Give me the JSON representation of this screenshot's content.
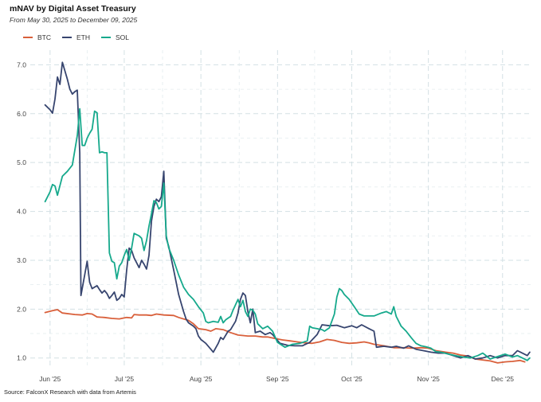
{
  "chart_data": {
    "type": "line",
    "title": "mNAV by Digital Asset Treasury",
    "subtitle": "From May 30, 2025 to December 09, 2025",
    "source": "Source: FalconX Research with data from Artemis",
    "xlabel": "",
    "ylabel": "",
    "ylim": [
      0.8,
      7.3
    ],
    "xlim_days": [
      -6,
      197
    ],
    "y_ticks": [
      1.0,
      2.0,
      3.0,
      4.0,
      5.0,
      6.0,
      7.0
    ],
    "y_tick_labels": [
      "1.0",
      "2.0",
      "3.0",
      "4.0",
      "5.0",
      "6.0",
      "7.0"
    ],
    "x_ticks": [
      {
        "label": "Jun '25",
        "day": 2
      },
      {
        "label": "Jul '25",
        "day": 32
      },
      {
        "label": "Aug '25",
        "day": 63
      },
      {
        "label": "Sep '25",
        "day": 94
      },
      {
        "label": "Oct '25",
        "day": 124
      },
      {
        "label": "Nov '25",
        "day": 155
      },
      {
        "label": "Dec '25",
        "day": 185
      }
    ],
    "x_unit": "days since May 30, 2025",
    "series": [
      {
        "name": "BTC",
        "color": "#d9603b",
        "points": [
          [
            0,
            1.93
          ],
          [
            3,
            1.97
          ],
          [
            5,
            1.99
          ],
          [
            7,
            1.92
          ],
          [
            12,
            1.89
          ],
          [
            15,
            1.88
          ],
          [
            17,
            1.91
          ],
          [
            19,
            1.9
          ],
          [
            21,
            1.84
          ],
          [
            24,
            1.83
          ],
          [
            27,
            1.81
          ],
          [
            30,
            1.8
          ],
          [
            33,
            1.83
          ],
          [
            35,
            1.82
          ],
          [
            36,
            1.89
          ],
          [
            38,
            1.88
          ],
          [
            41,
            1.88
          ],
          [
            43,
            1.87
          ],
          [
            45,
            1.9
          ],
          [
            48,
            1.88
          ],
          [
            52,
            1.87
          ],
          [
            54,
            1.83
          ],
          [
            58,
            1.77
          ],
          [
            60,
            1.7
          ],
          [
            62,
            1.6
          ],
          [
            65,
            1.58
          ],
          [
            67,
            1.55
          ],
          [
            69,
            1.6
          ],
          [
            72,
            1.58
          ],
          [
            75,
            1.52
          ],
          [
            78,
            1.47
          ],
          [
            82,
            1.45
          ],
          [
            85,
            1.45
          ],
          [
            88,
            1.43
          ],
          [
            90,
            1.43
          ],
          [
            93,
            1.4
          ],
          [
            96,
            1.37
          ],
          [
            99,
            1.35
          ],
          [
            102,
            1.33
          ],
          [
            105,
            1.31
          ],
          [
            108,
            1.3
          ],
          [
            111,
            1.33
          ],
          [
            114,
            1.38
          ],
          [
            117,
            1.36
          ],
          [
            120,
            1.32
          ],
          [
            123,
            1.3
          ],
          [
            126,
            1.31
          ],
          [
            129,
            1.33
          ],
          [
            131,
            1.31
          ],
          [
            133,
            1.28
          ],
          [
            137,
            1.25
          ],
          [
            141,
            1.21
          ],
          [
            145,
            1.21
          ],
          [
            148,
            1.2
          ],
          [
            152,
            1.21
          ],
          [
            155,
            1.2
          ],
          [
            158,
            1.15
          ],
          [
            162,
            1.12
          ],
          [
            165,
            1.1
          ],
          [
            168,
            1.06
          ],
          [
            171,
            1.04
          ],
          [
            174,
            0.98
          ],
          [
            177,
            0.96
          ],
          [
            180,
            0.94
          ],
          [
            183,
            0.9
          ],
          [
            186,
            0.92
          ],
          [
            189,
            0.93
          ],
          [
            192,
            0.95
          ],
          [
            194,
            0.92
          ]
        ]
      },
      {
        "name": "ETH",
        "color": "#37456f",
        "points": [
          [
            0,
            6.18
          ],
          [
            2,
            6.08
          ],
          [
            3,
            6.01
          ],
          [
            4,
            6.3
          ],
          [
            5,
            6.75
          ],
          [
            6,
            6.6
          ],
          [
            7,
            7.05
          ],
          [
            9,
            6.7
          ],
          [
            10,
            6.5
          ],
          [
            11,
            6.4
          ],
          [
            12,
            6.45
          ],
          [
            13,
            6.48
          ],
          [
            14,
            5.2
          ],
          [
            14.5,
            2.28
          ],
          [
            16,
            2.7
          ],
          [
            17,
            2.98
          ],
          [
            18,
            2.55
          ],
          [
            19,
            2.42
          ],
          [
            20,
            2.45
          ],
          [
            21,
            2.48
          ],
          [
            22,
            2.4
          ],
          [
            23,
            2.33
          ],
          [
            24,
            2.38
          ],
          [
            25,
            2.32
          ],
          [
            26,
            2.22
          ],
          [
            27,
            2.28
          ],
          [
            28,
            2.35
          ],
          [
            29,
            2.18
          ],
          [
            30,
            2.22
          ],
          [
            31,
            2.3
          ],
          [
            32,
            2.25
          ],
          [
            33,
            2.8
          ],
          [
            34,
            3.25
          ],
          [
            35,
            3.2
          ],
          [
            36,
            3.05
          ],
          [
            38,
            2.85
          ],
          [
            39,
            3.0
          ],
          [
            40,
            2.92
          ],
          [
            41,
            2.82
          ],
          [
            42,
            3.1
          ],
          [
            43,
            3.8
          ],
          [
            44,
            4.1
          ],
          [
            45,
            4.25
          ],
          [
            46,
            4.2
          ],
          [
            47,
            4.3
          ],
          [
            48,
            4.82
          ],
          [
            49,
            3.45
          ],
          [
            50,
            3.28
          ],
          [
            52,
            2.8
          ],
          [
            54,
            2.3
          ],
          [
            56,
            1.95
          ],
          [
            57,
            1.8
          ],
          [
            58,
            1.72
          ],
          [
            60,
            1.65
          ],
          [
            61,
            1.6
          ],
          [
            62,
            1.45
          ],
          [
            63,
            1.38
          ],
          [
            65,
            1.3
          ],
          [
            67,
            1.18
          ],
          [
            68,
            1.12
          ],
          [
            70,
            1.3
          ],
          [
            71,
            1.42
          ],
          [
            72,
            1.38
          ],
          [
            74,
            1.55
          ],
          [
            75,
            1.58
          ],
          [
            77,
            1.75
          ],
          [
            78,
            1.92
          ],
          [
            79,
            2.2
          ],
          [
            80,
            2.33
          ],
          [
            81,
            2.28
          ],
          [
            82,
            1.95
          ],
          [
            83,
            1.72
          ],
          [
            84,
            2.0
          ],
          [
            85,
            1.52
          ],
          [
            87,
            1.55
          ],
          [
            89,
            1.48
          ],
          [
            91,
            1.52
          ],
          [
            92,
            1.48
          ],
          [
            95,
            1.3
          ],
          [
            98,
            1.26
          ],
          [
            101,
            1.25
          ],
          [
            104,
            1.25
          ],
          [
            107,
            1.32
          ],
          [
            110,
            1.48
          ],
          [
            112,
            1.68
          ],
          [
            115,
            1.66
          ],
          [
            118,
            1.67
          ],
          [
            121,
            1.62
          ],
          [
            124,
            1.66
          ],
          [
            126,
            1.62
          ],
          [
            128,
            1.68
          ],
          [
            131,
            1.6
          ],
          [
            133,
            1.55
          ],
          [
            134,
            1.22
          ],
          [
            137,
            1.24
          ],
          [
            140,
            1.22
          ],
          [
            142,
            1.24
          ],
          [
            145,
            1.2
          ],
          [
            147,
            1.25
          ],
          [
            150,
            1.18
          ],
          [
            153,
            1.15
          ],
          [
            156,
            1.12
          ],
          [
            159,
            1.1
          ],
          [
            162,
            1.1
          ],
          [
            165,
            1.05
          ],
          [
            168,
            1.0
          ],
          [
            171,
            1.05
          ],
          [
            174,
            0.98
          ],
          [
            177,
            1.0
          ],
          [
            180,
            1.05
          ],
          [
            183,
            1.0
          ],
          [
            186,
            1.05
          ],
          [
            189,
            1.05
          ],
          [
            191,
            1.15
          ],
          [
            193,
            1.1
          ],
          [
            195,
            1.05
          ],
          [
            196,
            1.12
          ]
        ]
      },
      {
        "name": "SOL",
        "color": "#16a98c",
        "points": [
          [
            0,
            4.2
          ],
          [
            2,
            4.4
          ],
          [
            3,
            4.55
          ],
          [
            4,
            4.52
          ],
          [
            5,
            4.33
          ],
          [
            7,
            4.72
          ],
          [
            9,
            4.82
          ],
          [
            11,
            4.95
          ],
          [
            13,
            5.55
          ],
          [
            14,
            6.1
          ],
          [
            15,
            5.35
          ],
          [
            16,
            5.35
          ],
          [
            17,
            5.5
          ],
          [
            18,
            5.6
          ],
          [
            19,
            5.68
          ],
          [
            20,
            6.05
          ],
          [
            21,
            6.02
          ],
          [
            22,
            5.2
          ],
          [
            23,
            5.22
          ],
          [
            24,
            5.2
          ],
          [
            25,
            5.2
          ],
          [
            26,
            3.15
          ],
          [
            27,
            2.98
          ],
          [
            28,
            2.95
          ],
          [
            29,
            2.62
          ],
          [
            30,
            2.88
          ],
          [
            31,
            2.95
          ],
          [
            32,
            3.1
          ],
          [
            33,
            3.22
          ],
          [
            34,
            3.0
          ],
          [
            35,
            3.25
          ],
          [
            36,
            3.55
          ],
          [
            38,
            3.5
          ],
          [
            39,
            3.45
          ],
          [
            40,
            3.2
          ],
          [
            41,
            3.4
          ],
          [
            42,
            3.7
          ],
          [
            43,
            3.95
          ],
          [
            44,
            4.22
          ],
          [
            45,
            4.18
          ],
          [
            46,
            4.05
          ],
          [
            47,
            4.1
          ],
          [
            48,
            4.58
          ],
          [
            49,
            3.5
          ],
          [
            50,
            3.25
          ],
          [
            52,
            3.0
          ],
          [
            54,
            2.7
          ],
          [
            56,
            2.45
          ],
          [
            58,
            2.3
          ],
          [
            60,
            2.2
          ],
          [
            62,
            2.05
          ],
          [
            64,
            1.92
          ],
          [
            65,
            1.75
          ],
          [
            66,
            1.72
          ],
          [
            68,
            1.75
          ],
          [
            70,
            1.73
          ],
          [
            71,
            1.85
          ],
          [
            72,
            1.72
          ],
          [
            73,
            1.78
          ],
          [
            75,
            1.85
          ],
          [
            76,
            1.98
          ],
          [
            78,
            2.2
          ],
          [
            79,
            2.05
          ],
          [
            80,
            2.18
          ],
          [
            81,
            1.95
          ],
          [
            82,
            1.85
          ],
          [
            83,
            2.0
          ],
          [
            84,
            1.98
          ],
          [
            85,
            1.9
          ],
          [
            86,
            1.7
          ],
          [
            88,
            1.6
          ],
          [
            90,
            1.65
          ],
          [
            92,
            1.55
          ],
          [
            94,
            1.32
          ],
          [
            97,
            1.22
          ],
          [
            100,
            1.28
          ],
          [
            103,
            1.3
          ],
          [
            106,
            1.35
          ],
          [
            107,
            1.65
          ],
          [
            108,
            1.62
          ],
          [
            110,
            1.6
          ],
          [
            112,
            1.58
          ],
          [
            113,
            1.55
          ],
          [
            115,
            1.62
          ],
          [
            117,
            1.9
          ],
          [
            118,
            2.25
          ],
          [
            119,
            2.42
          ],
          [
            120,
            2.38
          ],
          [
            121,
            2.3
          ],
          [
            123,
            2.2
          ],
          [
            125,
            2.05
          ],
          [
            127,
            1.9
          ],
          [
            129,
            1.86
          ],
          [
            131,
            1.86
          ],
          [
            133,
            1.86
          ],
          [
            136,
            1.92
          ],
          [
            138,
            1.95
          ],
          [
            140,
            1.9
          ],
          [
            141,
            2.05
          ],
          [
            142,
            1.85
          ],
          [
            144,
            1.65
          ],
          [
            146,
            1.55
          ],
          [
            148,
            1.42
          ],
          [
            150,
            1.3
          ],
          [
            152,
            1.25
          ],
          [
            154,
            1.23
          ],
          [
            156,
            1.2
          ],
          [
            158,
            1.13
          ],
          [
            160,
            1.12
          ],
          [
            163,
            1.08
          ],
          [
            166,
            1.05
          ],
          [
            169,
            1.02
          ],
          [
            172,
            1.0
          ],
          [
            175,
            1.05
          ],
          [
            177,
            1.1
          ],
          [
            178,
            1.06
          ],
          [
            180,
            0.98
          ],
          [
            183,
            1.03
          ],
          [
            186,
            1.08
          ],
          [
            189,
            1.02
          ],
          [
            191,
            1.05
          ],
          [
            193,
            1.0
          ],
          [
            195,
            0.95
          ],
          [
            196,
            1.0
          ]
        ]
      }
    ]
  }
}
